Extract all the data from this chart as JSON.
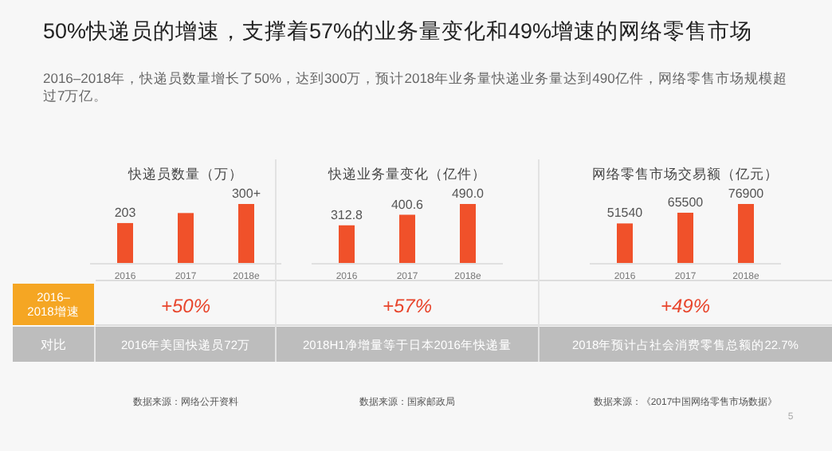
{
  "chart_data": [
    {
      "type": "other",
      "title": "50%快递员的增速，支撑着57%的业务量变化和49%增速的网络零售市场",
      "subtitle": "2016–2018年，快递员数量增长了50%，达到300万，预计2018年业务量快递业务量达到490亿件，网络零售市场规模超过7万亿。",
      "annotations": [
        "2016–2018增速",
        "对比",
        "5"
      ]
    },
    {
      "type": "bar",
      "title": "快递员数量（万）",
      "categories": [
        "2016",
        "2017",
        "2018e"
      ],
      "values": [
        203,
        254,
        300
      ],
      "value_labels": [
        "203",
        null,
        "300+"
      ],
      "color": "#f0512a",
      "annotations": [
        "+50%",
        "2016年美国快递员72万",
        "数据来源：网络公开资料"
      ]
    },
    {
      "type": "bar",
      "title": "快递业务量变化（亿件）",
      "categories": [
        "2016",
        "2017",
        "2018e"
      ],
      "values": [
        312.8,
        400.6,
        490.0
      ],
      "value_labels": [
        "312.8",
        "400.6",
        "490.0"
      ],
      "color": "#f0512a",
      "annotations": [
        "+57%",
        "2018H1净增量等于日本2016年快递量",
        "数据来源：国家邮政局"
      ]
    },
    {
      "type": "bar",
      "title": "网络零售市场交易额（亿元）",
      "categories": [
        "2016",
        "2017",
        "2018e"
      ],
      "values": [
        51540,
        65500,
        76900
      ],
      "data_labels": true,
      "color": "#f0512a",
      "annotations": [
        "+49%",
        "2018年预计占社会消费零售总额的22.7%",
        "数据来源：《2017中国网络零售市场数据》"
      ]
    }
  ]
}
